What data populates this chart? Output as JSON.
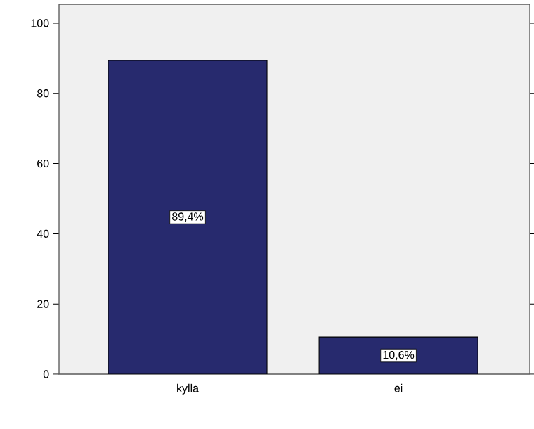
{
  "chart_data": {
    "type": "bar",
    "categories": [
      "kylla",
      "ei"
    ],
    "values": [
      89.4,
      10.6
    ],
    "color": "#272a6e",
    "value_labels": [
      "89,4%",
      "10,6%"
    ],
    "ylim": [
      0,
      105.4
    ],
    "yticks": [
      0,
      20,
      40,
      60,
      80,
      100
    ]
  }
}
